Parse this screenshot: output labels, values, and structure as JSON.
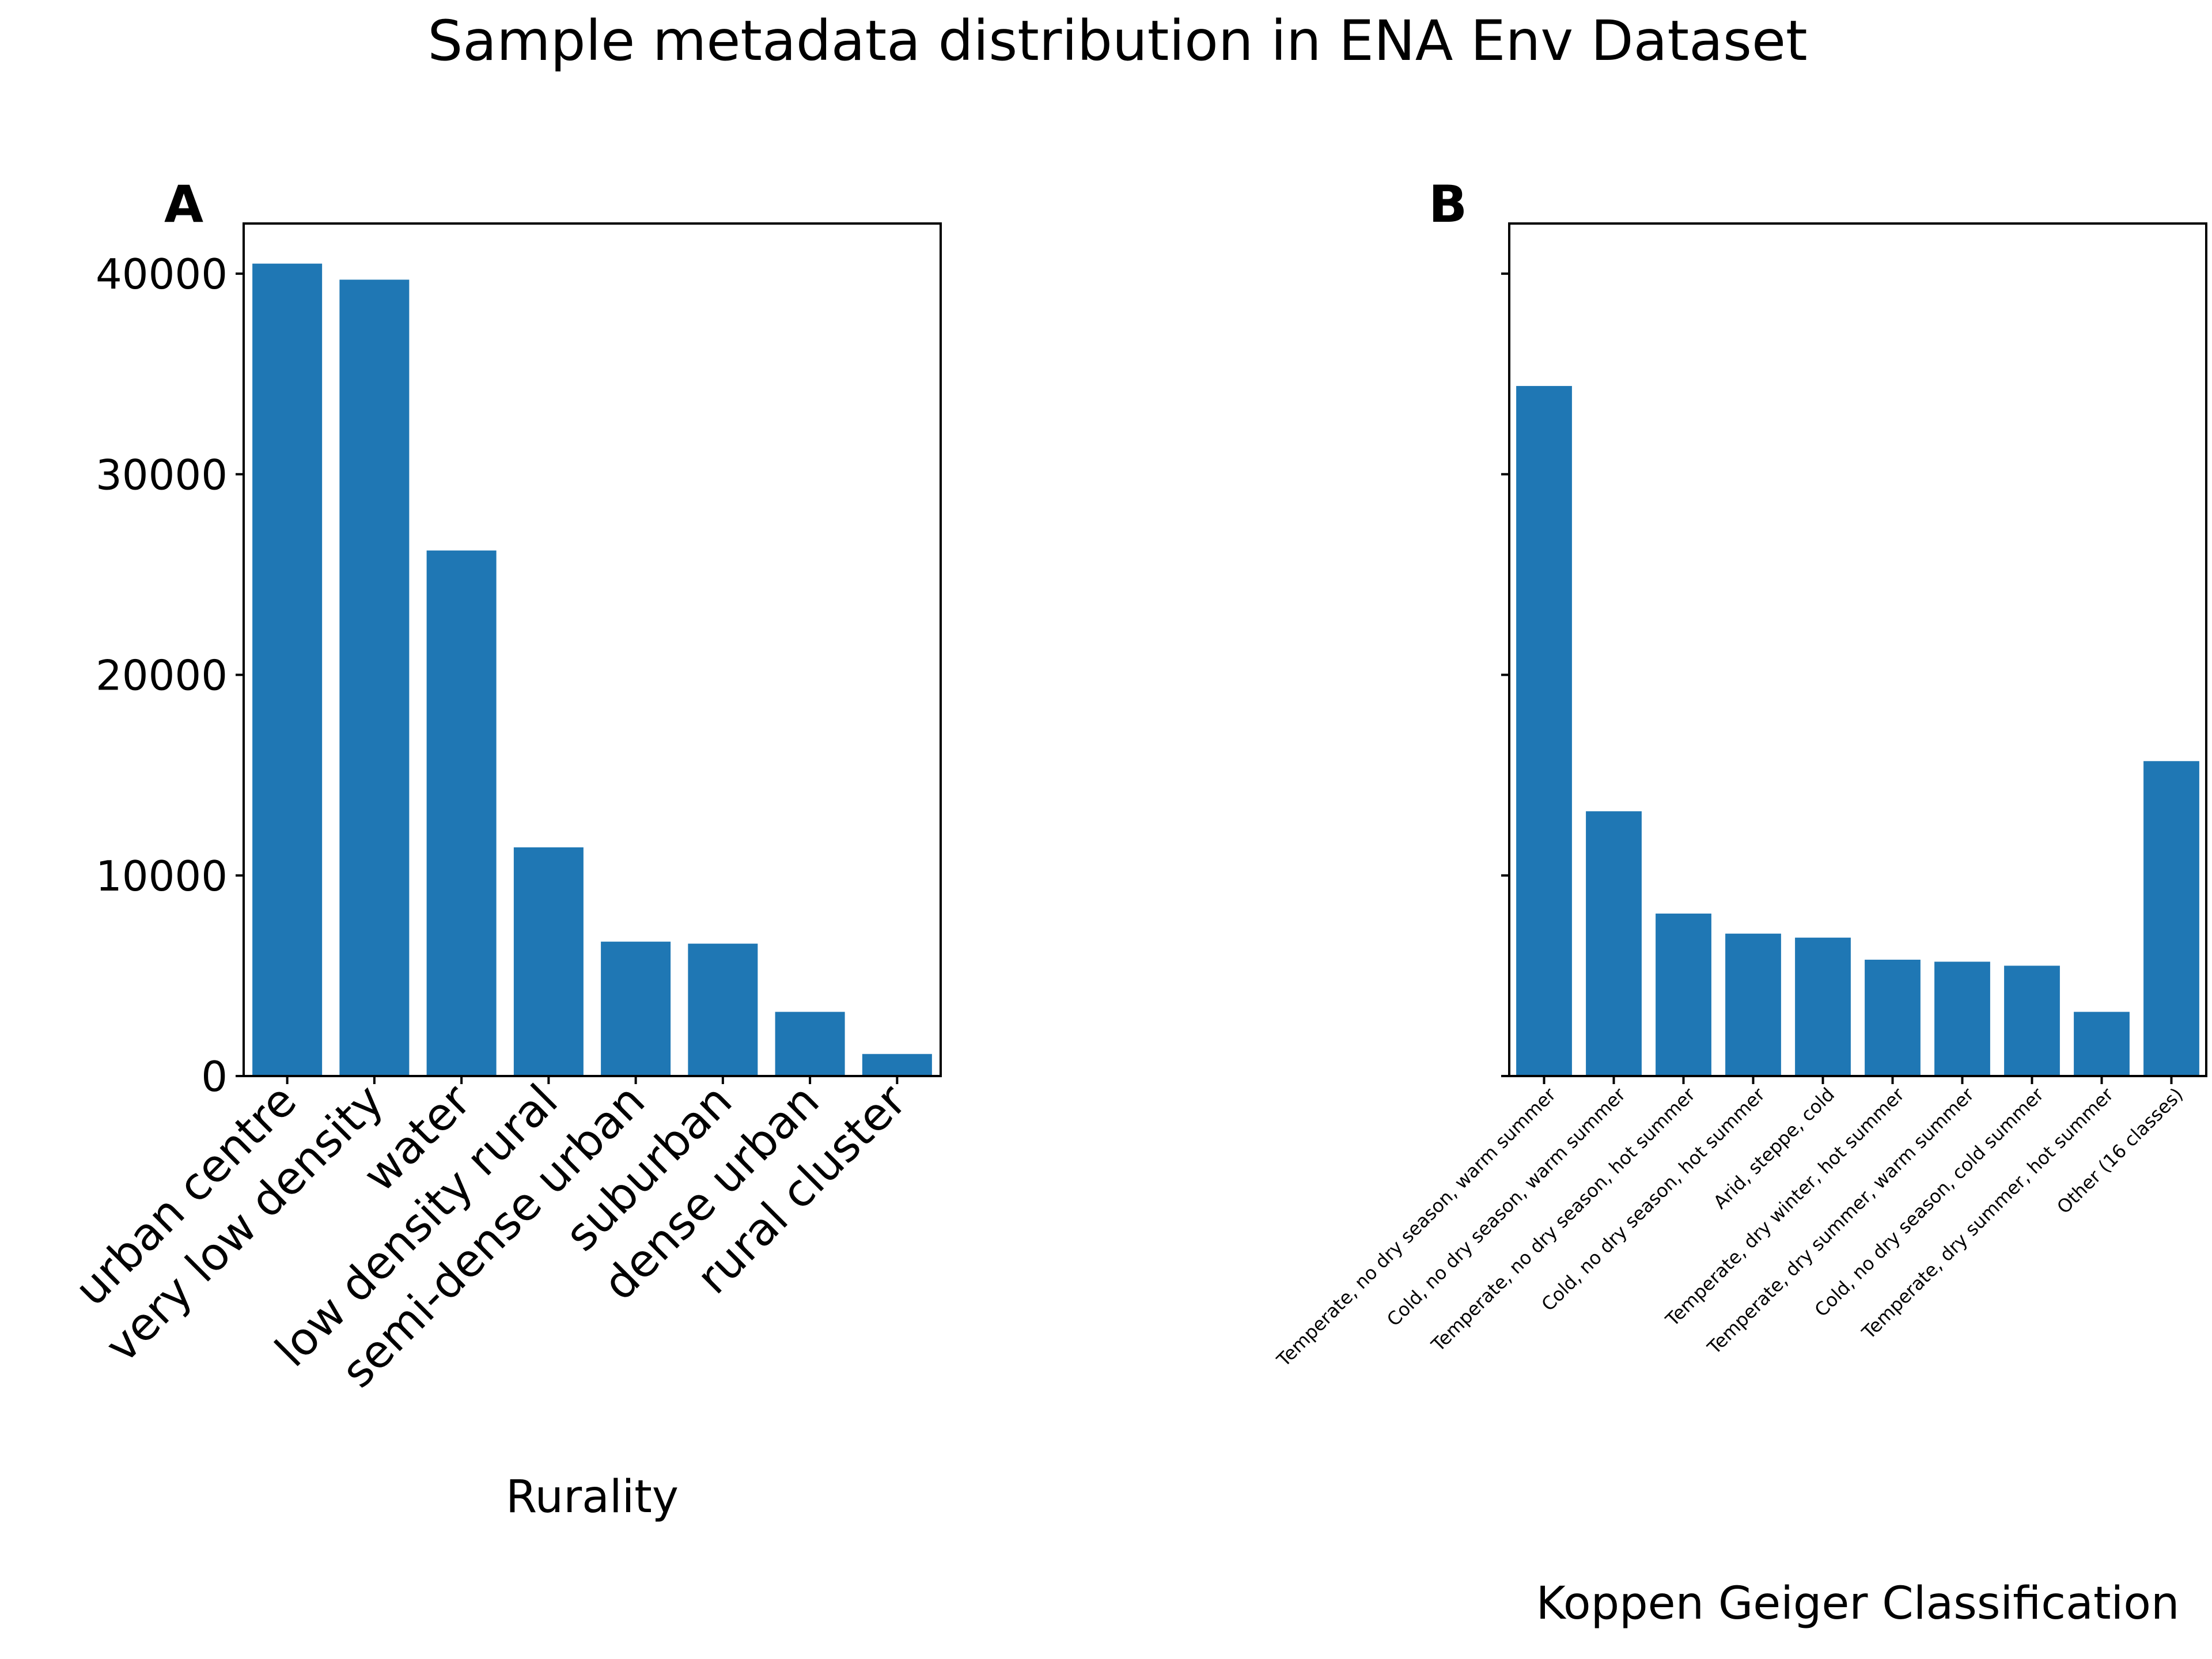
{
  "title": "Sample metadata distribution in ENA Env Dataset",
  "colors": {
    "bar": "#1f77b4",
    "axis": "#000000",
    "background": "#ffffff"
  },
  "chart_data": [
    {
      "type": "bar",
      "panel": "A",
      "xlabel": "Rurality",
      "ylabel": "",
      "ylim": [
        0,
        42500
      ],
      "yticks": [
        0,
        10000,
        20000,
        30000,
        40000
      ],
      "categories": [
        "urban centre",
        "very low density",
        "water",
        "low density rural",
        "semi-dense urban",
        "suburban",
        "dense urban",
        "rural cluster"
      ],
      "values": [
        40500,
        39700,
        26200,
        11400,
        6700,
        6600,
        3200,
        1100
      ],
      "grid": false,
      "legend": "none"
    },
    {
      "type": "bar",
      "panel": "B",
      "xlabel": "Koppen Geiger Classification",
      "ylabel": "",
      "ylim": [
        0,
        42500
      ],
      "yticks": [
        0,
        10000,
        20000,
        30000,
        40000
      ],
      "show_ytick_labels": false,
      "categories": [
        "Temperate, no dry season, warm summer",
        "Cold, no dry season, warm summer",
        "Temperate, no dry season, hot summer",
        "Cold, no dry season, hot summer",
        "Arid, steppe, cold",
        "Temperate, dry winter, hot summer",
        "Temperate, dry summer, warm summer",
        "Cold, no dry season, cold summer",
        "Temperate, dry summer, hot summer",
        "Other (16 classes)"
      ],
      "values": [
        34400,
        13200,
        8100,
        7100,
        6900,
        5800,
        5700,
        5500,
        3200,
        15700
      ],
      "grid": false,
      "legend": "none"
    }
  ]
}
